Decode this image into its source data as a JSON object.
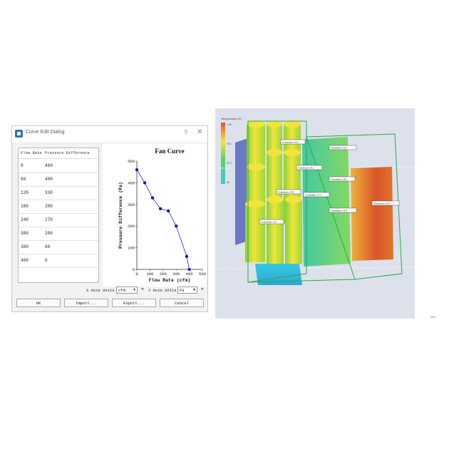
{
  "dialog": {
    "title": "Curve Edit Dialog",
    "help_glyph": "?",
    "close_glyph": "✕",
    "table": {
      "headers": [
        "Flow Rate",
        "Pressure Difference"
      ],
      "rows": [
        [
          "0",
          "460"
        ],
        [
          "60",
          "400"
        ],
        [
          "120",
          "330"
        ],
        [
          "180",
          "280"
        ],
        [
          "240",
          "270"
        ],
        [
          "300",
          "200"
        ],
        [
          "380",
          "60"
        ],
        [
          "400",
          "0"
        ]
      ]
    },
    "x_units_label": "X Axis Units",
    "x_units_value": "cfm",
    "y_units_label": "Y Axis Units",
    "y_units_value": "Pa",
    "buttons": {
      "ok": "OK",
      "import": "Import...",
      "export": "Export...",
      "cancel": "Cancel"
    }
  },
  "chart_data": {
    "type": "line",
    "title": "Fan Curve",
    "xlabel": "Flow Rate (cfm)",
    "ylabel": "Pressure Difference (Pa)",
    "x": [
      0,
      60,
      120,
      180,
      240,
      300,
      380,
      400
    ],
    "y": [
      460,
      400,
      330,
      280,
      270,
      200,
      60,
      0
    ],
    "xlim": [
      0,
      500
    ],
    "ylim": [
      0,
      500
    ],
    "xticks": [
      "0",
      "100",
      "200",
      "300",
      "400",
      "500"
    ],
    "yticks": [
      "0",
      "100",
      "200",
      "300",
      "400",
      "500"
    ],
    "grid": false,
    "line_color": "#3a3af0",
    "marker_color": "#1212d8"
  },
  "simulation": {
    "legend_title": "Temperature (C)",
    "legend_ticks": [
      "1.00",
      "76.1",
      "47.2",
      "28"
    ],
    "probe_labels": [
      "Temperature: 45.2",
      "Temperature: 42.8",
      "Temperature: 40.1",
      "Temperature: 38.5",
      "Temperature: 36.9",
      "Temperature: 37.4",
      "Temperature: 35.8",
      "Temperature: 52.6",
      "Temperature: 41.3"
    ],
    "colors": {
      "hot": "#d9552a",
      "warm": "#f4e437",
      "mid": "#5fd35a",
      "cool": "#37c9e0",
      "box_edge": "#2aa84a"
    }
  }
}
